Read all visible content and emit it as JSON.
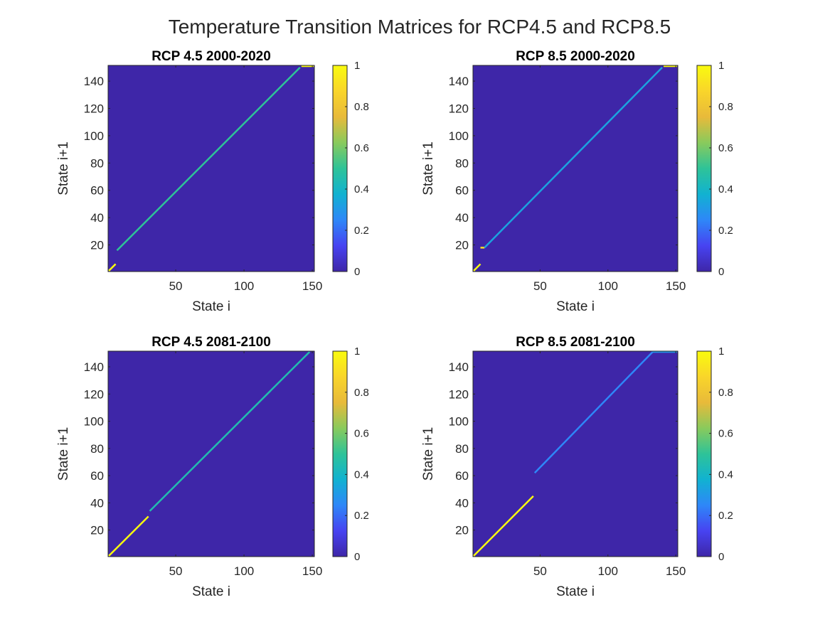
{
  "figure": {
    "title": "Temperature Transition Matrices for RCP4.5 and RCP8.5"
  },
  "colors": {
    "background": "#3E26A8",
    "colormap": [
      "#3E26A8",
      "#4743F1",
      "#2E87F8",
      "#11B2D1",
      "#2EC398",
      "#89CA5C",
      "#E8BA3A",
      "#F9D52A",
      "#F9FB0E"
    ]
  },
  "chart_data": [
    {
      "type": "heatmap",
      "title": "RCP 4.5 2000-2020",
      "xlabel": "State i",
      "ylabel": "State i+1",
      "xlim": [
        1,
        151
      ],
      "ylim": [
        1,
        151
      ],
      "xticks": [
        50,
        100,
        150
      ],
      "yticks": [
        20,
        40,
        60,
        80,
        100,
        120,
        140
      ],
      "colorbar": {
        "ticks": [
          0,
          0.2,
          0.4,
          0.6,
          0.8,
          1
        ],
        "labels": [
          "0",
          "0.2",
          "0.4",
          "0.6",
          "0.8",
          "1"
        ],
        "range": [
          0,
          1
        ]
      },
      "segments": [
        {
          "x0": 1,
          "y0": 1,
          "x1": 6,
          "y1": 6,
          "value": 1.0
        },
        {
          "x0": 7,
          "y0": 16,
          "x1": 141,
          "y1": 150,
          "value": 0.5
        },
        {
          "x0": 142,
          "y0": 151,
          "x1": 151,
          "y1": 151,
          "value": 1.0
        }
      ]
    },
    {
      "type": "heatmap",
      "title": "RCP 8.5 2000-2020",
      "xlabel": "State i",
      "ylabel": "State i+1",
      "xlim": [
        1,
        151
      ],
      "ylim": [
        1,
        151
      ],
      "xticks": [
        50,
        100,
        150
      ],
      "yticks": [
        20,
        40,
        60,
        80,
        100,
        120,
        140
      ],
      "colorbar": {
        "ticks": [
          0,
          0.2,
          0.4,
          0.6,
          0.8,
          1
        ],
        "labels": [
          "0",
          "0.2",
          "0.4",
          "0.6",
          "0.8",
          "1"
        ],
        "range": [
          0,
          1
        ]
      },
      "segments": [
        {
          "x0": 1,
          "y0": 1,
          "x1": 6,
          "y1": 6,
          "value": 1.0
        },
        {
          "x0": 6,
          "y0": 18,
          "x1": 9,
          "y1": 18,
          "value": 0.9
        },
        {
          "x0": 9,
          "y0": 18,
          "x1": 140,
          "y1": 150,
          "value": 0.33
        },
        {
          "x0": 141,
          "y0": 151,
          "x1": 151,
          "y1": 151,
          "value": 1.0
        }
      ]
    },
    {
      "type": "heatmap",
      "title": "RCP 4.5 2081-2100",
      "xlabel": "State i",
      "ylabel": "State i+1",
      "xlim": [
        1,
        151
      ],
      "ylim": [
        1,
        151
      ],
      "xticks": [
        50,
        100,
        150
      ],
      "yticks": [
        20,
        40,
        60,
        80,
        100,
        120,
        140
      ],
      "colorbar": {
        "ticks": [
          0,
          0.2,
          0.4,
          0.6,
          0.8,
          1
        ],
        "labels": [
          "0",
          "0.2",
          "0.4",
          "0.6",
          "0.8",
          "1"
        ],
        "range": [
          0,
          1
        ]
      },
      "segments": [
        {
          "x0": 1,
          "y0": 1,
          "x1": 30,
          "y1": 30,
          "value": 1.0
        },
        {
          "x0": 31,
          "y0": 34,
          "x1": 148,
          "y1": 151,
          "value": 0.45
        }
      ]
    },
    {
      "type": "heatmap",
      "title": "RCP 8.5 2081-2100",
      "xlabel": "State i",
      "ylabel": "State i+1",
      "xlim": [
        1,
        151
      ],
      "ylim": [
        1,
        151
      ],
      "xticks": [
        50,
        100,
        150
      ],
      "yticks": [
        20,
        40,
        60,
        80,
        100,
        120,
        140
      ],
      "colorbar": {
        "ticks": [
          0,
          0.2,
          0.4,
          0.6,
          0.8,
          1
        ],
        "labels": [
          "0",
          "0.2",
          "0.4",
          "0.6",
          "0.8",
          "1"
        ],
        "range": [
          0,
          1
        ]
      },
      "segments": [
        {
          "x0": 1,
          "y0": 1,
          "x1": 45,
          "y1": 45,
          "value": 1.0
        },
        {
          "x0": 46,
          "y0": 62,
          "x1": 133,
          "y1": 151,
          "value": 0.25
        },
        {
          "x0": 133,
          "y0": 151,
          "x1": 151,
          "y1": 151,
          "value": 0.3
        }
      ]
    }
  ]
}
